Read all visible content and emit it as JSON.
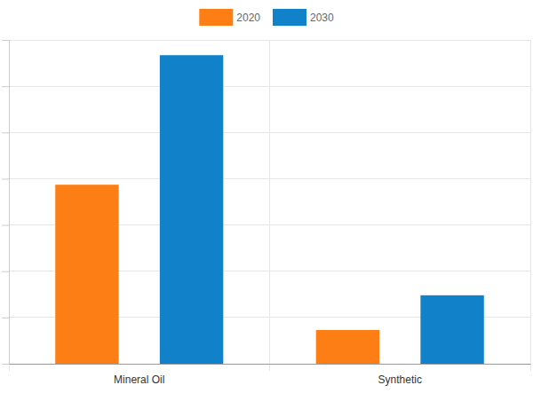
{
  "chart_data": {
    "type": "bar",
    "categories": [
      "Mineral Oil",
      "Synthetic"
    ],
    "series": [
      {
        "name": "2020",
        "color": "#fd7e14",
        "values": [
          3.87,
          0.73
        ]
      },
      {
        "name": "2030",
        "color": "#1182c9",
        "values": [
          6.67,
          1.48
        ]
      }
    ],
    "ylim": [
      0,
      7
    ],
    "yticks": [
      0,
      1,
      2,
      3,
      4,
      5,
      6,
      7
    ],
    "grid": true,
    "legend": "top",
    "tick_labels": "x"
  }
}
